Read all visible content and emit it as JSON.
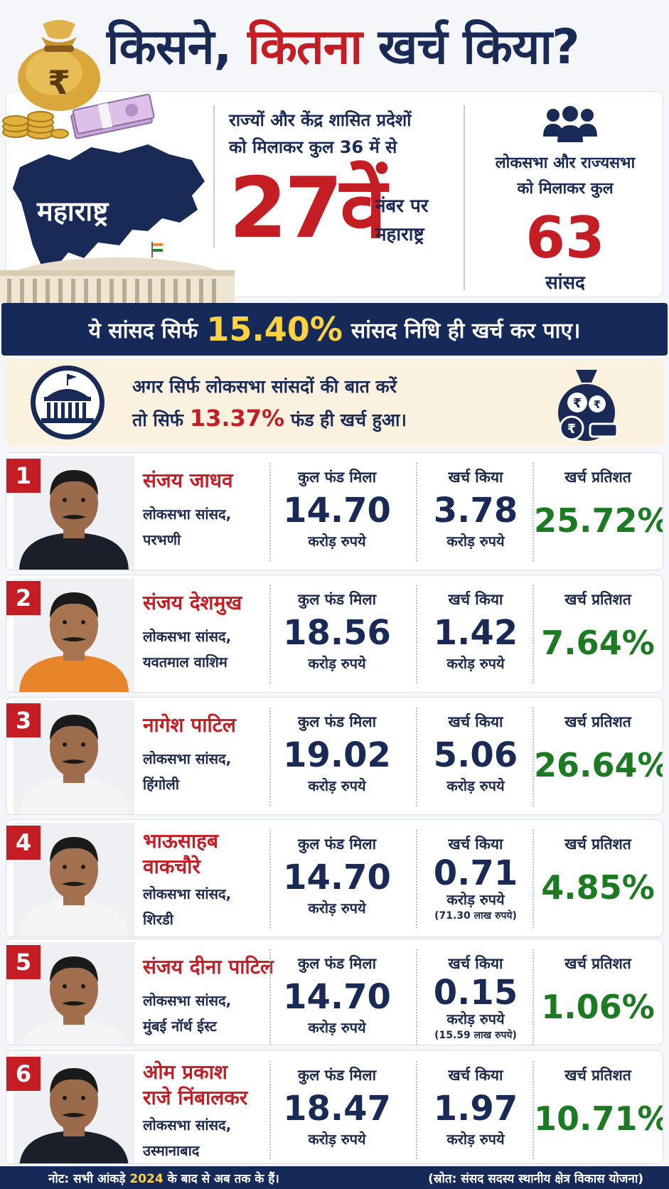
{
  "header": {
    "title_part1": "किसने,",
    "title_part2": "कितना",
    "title_part3": "खर्च किया?"
  },
  "state": {
    "name": "महाराष्ट्र",
    "rank_line1": "राज्यों और केंद्र शासित प्रदेशों",
    "rank_line2": "को मिलाकर कुल 36 में से",
    "rank_value": "27वें",
    "rank_side_line1": "नंबर पर",
    "rank_side_line2": "महाराष्ट्र"
  },
  "mps_total": {
    "line1": "लोकसभा और राज्यसभा",
    "line2": "को मिलाकर कुल",
    "count": "63",
    "label": "सांसद"
  },
  "banner": {
    "prefix": "ये सांसद सिर्फ",
    "highlight": "15.40%",
    "suffix": "सांसद निधि ही खर्च कर पाए।"
  },
  "lok_sabha_note": {
    "line1": "अगर सिर्फ लोकसभा सांसदों की बात करें",
    "line2_prefix": "तो सिर्फ",
    "line2_pct": "13.37%",
    "line2_suffix": "फंड ही खर्च हुआ।"
  },
  "columns": {
    "fund": "कुल फंड मिला",
    "spent": "खर्च किया",
    "percent": "खर्च प्रतिशत",
    "unit": "करोड़ रुपये"
  },
  "mps": [
    {
      "rank": "1",
      "name": "संजय जाधव",
      "role": "लोकसभा सांसद,",
      "constituency": "परभणी",
      "fund": "14.70",
      "spent": "3.78",
      "spent_note": "",
      "percent": "25.72%",
      "shirt": "#1b1f2a",
      "skin": "#9b6a4a"
    },
    {
      "rank": "2",
      "name": "संजय देशमुख",
      "role": "लोकसभा सांसद,",
      "constituency": "यवतमाल वाशिम",
      "fund": "18.56",
      "spent": "1.42",
      "spent_note": "",
      "percent": "7.64%",
      "shirt": "#e8852a",
      "skin": "#a8744f"
    },
    {
      "rank": "3",
      "name": "नागेश पाटिल",
      "role": "लोकसभा सांसद,",
      "constituency": "हिंगोली",
      "fund": "19.02",
      "spent": "5.06",
      "spent_note": "",
      "percent": "26.64%",
      "shirt": "#f5f5f5",
      "skin": "#9d6c4c"
    },
    {
      "rank": "4",
      "name_line1": "भाऊसाहब",
      "name_line2": "वाकचौरे",
      "role": "लोकसभा सांसद,",
      "constituency": "शिरडी",
      "fund": "14.70",
      "spent": "0.71",
      "spent_note": "(71.30 लाख रुपये)",
      "percent": "4.85%",
      "shirt": "#f5f5f5",
      "skin": "#a3714f"
    },
    {
      "rank": "5",
      "name": "संजय दीना पाटिल",
      "role": "लोकसभा सांसद,",
      "constituency": "मुंबई नॉर्थ ईस्ट",
      "fund": "14.70",
      "spent": "0.15",
      "spent_note": "(15.59 लाख रुपये)",
      "percent": "1.06%",
      "shirt": "#f5f5f5",
      "skin": "#a06d4d"
    },
    {
      "rank": "6",
      "name_line1": "ओम प्रकाश",
      "name_line2": "राजे निंबालकर",
      "role": "लोकसभा सांसद,",
      "constituency": "उस्मानाबाद",
      "fund": "18.47",
      "spent": "1.97",
      "spent_note": "",
      "percent": "10.71%",
      "shirt": "#1b1f2a",
      "skin": "#9b6a4a"
    }
  ],
  "footer": {
    "note_prefix": "नोट: सभी आंकड़े",
    "note_year": "2024",
    "note_suffix": "के बाद से अब तक के हैं।",
    "source": "(स्रोत: संसद सदस्य स्थानीय क्षेत्र विकास योजना)"
  }
}
